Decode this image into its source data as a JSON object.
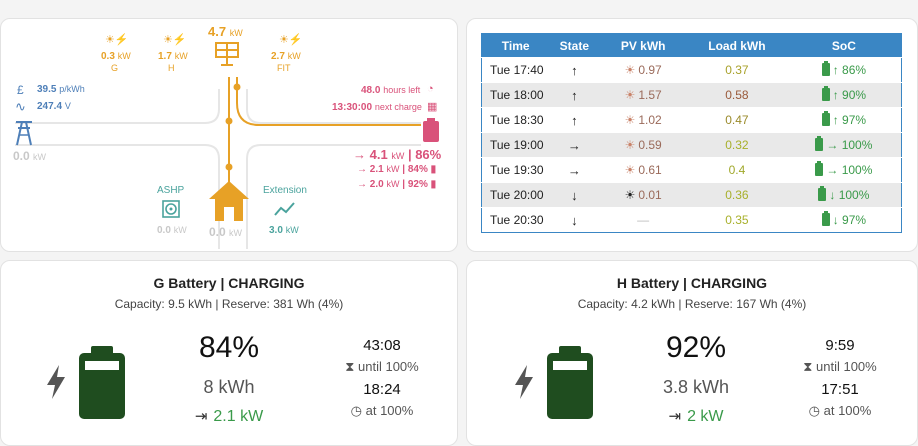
{
  "flow": {
    "solar_total": "4.7",
    "solar_unit": "kW",
    "pv_g": {
      "value": "0.3",
      "unit": "kW",
      "label": "G"
    },
    "pv_h": {
      "value": "1.7",
      "unit": "kW",
      "label": "H"
    },
    "pv_fit": {
      "value": "2.7",
      "unit": "kW",
      "label": "FIT"
    },
    "tariff": {
      "symbol": "£",
      "value": "39.5",
      "unit": "p/kWh"
    },
    "voltage": {
      "symbol": "∿",
      "value": "247.4",
      "unit": "V"
    },
    "grid_power": {
      "value": "0.0",
      "unit": "kW"
    },
    "hours_left": {
      "value": "48.0",
      "label": "hours left"
    },
    "next_charge": {
      "value": "13:30:00",
      "label": "next charge"
    },
    "battery_total": {
      "value": "4.1",
      "unit": "kW",
      "soc": "86%"
    },
    "battery_g": {
      "value": "2.1",
      "unit": "kW",
      "soc": "84%"
    },
    "battery_h": {
      "value": "2.0",
      "unit": "kW",
      "soc": "92%"
    },
    "ashp": {
      "label": "ASHP",
      "value": "0.0",
      "unit": "kW"
    },
    "home": {
      "value": "0.0",
      "unit": "kW"
    },
    "extension": {
      "label": "Extension",
      "value": "3.0",
      "unit": "kW"
    },
    "colors": {
      "solar": "#e7a126",
      "grid": "#4e7fb8",
      "battery": "#d9527a",
      "individual": "#4aa39d"
    }
  },
  "forecast": {
    "headers": [
      "Time",
      "State",
      "PV kWh",
      "Load kWh",
      "SoC"
    ],
    "rows": [
      {
        "time": "Tue 17:40",
        "state": "↑",
        "pv": "0.97",
        "load": "0.37",
        "soc": "↑ 86%",
        "load_color": "#a8a12a"
      },
      {
        "time": "Tue 18:00",
        "state": "↑",
        "pv": "1.57",
        "load": "0.58",
        "soc": "↑ 90%",
        "load_color": "#9a5a3a"
      },
      {
        "time": "Tue 18:30",
        "state": "↑",
        "pv": "1.02",
        "load": "0.47",
        "soc": "↑ 97%",
        "load_color": "#9a8a2a"
      },
      {
        "time": "Tue 19:00",
        "state": "→",
        "pv": "0.59",
        "load": "0.32",
        "soc": "→ 100%",
        "load_color": "#a8b02a"
      },
      {
        "time": "Tue 19:30",
        "state": "→",
        "pv": "0.61",
        "load": "0.4",
        "soc": "→ 100%",
        "load_color": "#a0a82a"
      },
      {
        "time": "Tue 20:00",
        "state": "↓",
        "pv": "0.01",
        "load": "0.36",
        "soc": "↓ 100%",
        "load_color": "#a8b02a"
      },
      {
        "time": "Tue 20:30",
        "state": "↓",
        "pv": "—",
        "load": "0.35",
        "soc": "↓ 97%",
        "load_color": "#a8b02a"
      }
    ]
  },
  "battery_g": {
    "title": "G Battery | CHARGING",
    "subtitle": "Capacity: 9.5 kWh | Reserve: 381 Wh (4%)",
    "soc": "84%",
    "energy": "8 kWh",
    "power": "2.1 kW",
    "time_to_full": "43:08",
    "until_label": "until 100%",
    "full_at": "18:24",
    "at_label": "at 100%",
    "battery_color": "#1f4d1f"
  },
  "battery_h": {
    "title": "H Battery | CHARGING",
    "subtitle": "Capacity: 4.2 kWh | Reserve: 167 Wh (4%)",
    "soc": "92%",
    "energy": "3.8 kWh",
    "power": "2 kW",
    "time_to_full": "9:59",
    "until_label": "until 100%",
    "full_at": "17:51",
    "at_label": "at 100%",
    "battery_color": "#1f4d1f"
  }
}
